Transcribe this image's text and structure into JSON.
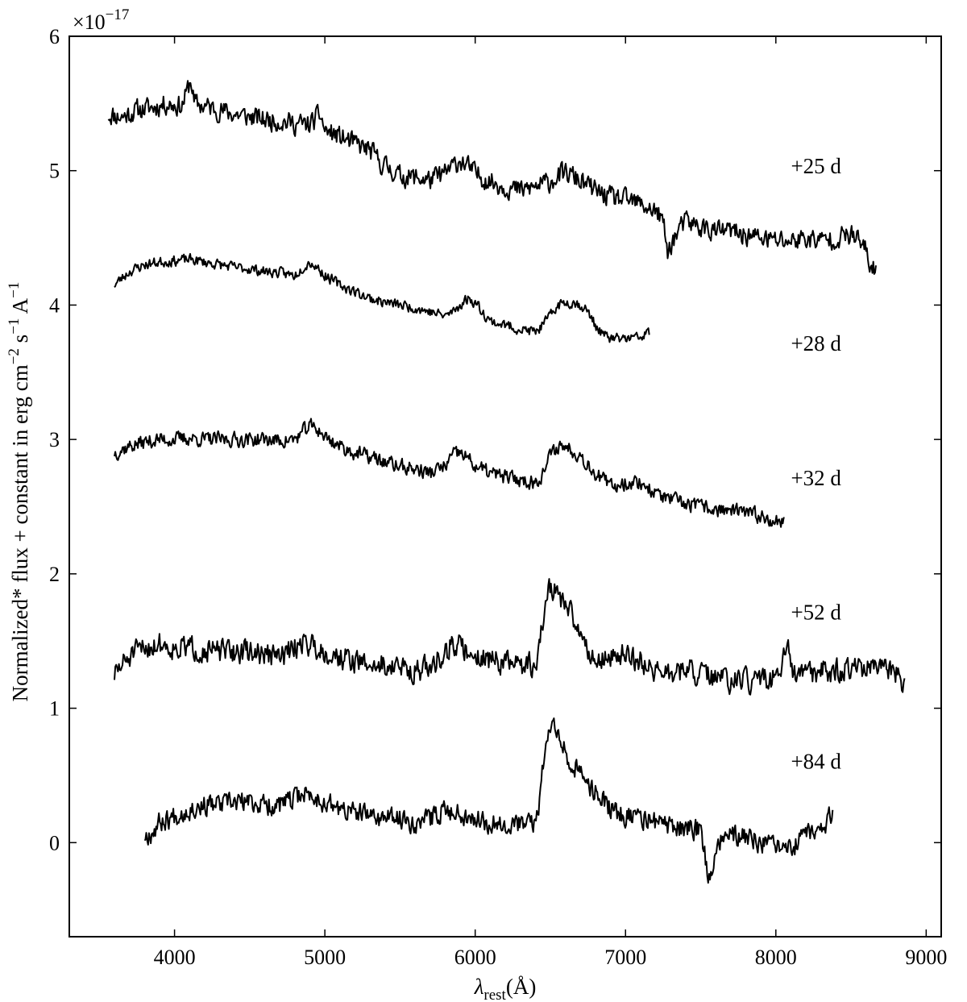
{
  "chart_data": {
    "type": "line",
    "title": "",
    "xlabel": "λrest(Å)",
    "xlabel_parts": {
      "symbol": "λ",
      "subscript": "rest",
      "unit": "(Å)"
    },
    "ylabel": "Normalized* flux + constant in erg cm−2 s−1 A−1",
    "ylabel_parts": {
      "lead": "Normalized* flux + constant in erg cm",
      "exp1": "−2",
      "mid": " s",
      "exp2": "−1",
      "tail": " A",
      "exp3": "−1"
    },
    "y_multiplier": "×10−17",
    "y_multiplier_parts": {
      "base": "×10",
      "exp": "−17"
    },
    "xlim": [
      3300,
      9100
    ],
    "ylim": [
      -0.7,
      6.0
    ],
    "xticks": [
      4000,
      5000,
      6000,
      7000,
      8000,
      9000
    ],
    "yticks": [
      0,
      1,
      2,
      3,
      4,
      5,
      6
    ],
    "grid": false,
    "line_color": "#000000",
    "series": [
      {
        "name": "+25 d",
        "label_pos": [
          8100,
          4.98
        ],
        "x": [
          3560,
          3650,
          3750,
          3850,
          3950,
          4050,
          4110,
          4130,
          4200,
          4300,
          4400,
          4500,
          4600,
          4700,
          4800,
          4900,
          4970,
          5000,
          5100,
          5200,
          5300,
          5380,
          5450,
          5500,
          5600,
          5700,
          5800,
          5900,
          6000,
          6100,
          6200,
          6300,
          6400,
          6450,
          6500,
          6550,
          6600,
          6650,
          6700,
          6800,
          6900,
          7000,
          7100,
          7200,
          7250,
          7280,
          7300,
          7350,
          7400,
          7500,
          7600,
          7700,
          7800,
          7900,
          8000,
          8100,
          8200,
          8300,
          8400,
          8500,
          8550,
          8600,
          8640,
          8670
        ],
        "y": [
          5.42,
          5.4,
          5.45,
          5.47,
          5.5,
          5.48,
          5.68,
          5.5,
          5.48,
          5.45,
          5.42,
          5.4,
          5.38,
          5.37,
          5.35,
          5.34,
          5.42,
          5.3,
          5.25,
          5.2,
          5.15,
          5.05,
          5.0,
          4.96,
          4.95,
          4.93,
          4.98,
          5.08,
          4.98,
          4.92,
          4.88,
          4.85,
          4.88,
          4.9,
          4.92,
          4.96,
          4.98,
          4.96,
          4.92,
          4.85,
          4.8,
          4.78,
          4.75,
          4.7,
          4.62,
          4.38,
          4.45,
          4.55,
          4.62,
          4.58,
          4.55,
          4.55,
          4.52,
          4.5,
          4.48,
          4.48,
          4.5,
          4.48,
          4.5,
          4.52,
          4.48,
          4.4,
          4.25,
          4.3
        ],
        "noise": 0.07,
        "seed": 11
      },
      {
        "name": "+28 d",
        "label_pos": [
          8100,
          3.66
        ],
        "x": [
          3600,
          3700,
          3800,
          3900,
          4000,
          4100,
          4200,
          4300,
          4400,
          4500,
          4600,
          4700,
          4800,
          4850,
          4900,
          4950,
          5000,
          5100,
          5200,
          5300,
          5400,
          5500,
          5600,
          5700,
          5800,
          5850,
          5900,
          5950,
          6000,
          6050,
          6100,
          6200,
          6300,
          6400,
          6450,
          6500,
          6550,
          6600,
          6650,
          6700,
          6750,
          6800,
          6850,
          6900,
          7000,
          7100,
          7160
        ],
        "y": [
          4.15,
          4.25,
          4.3,
          4.32,
          4.33,
          4.34,
          4.32,
          4.3,
          4.28,
          4.27,
          4.25,
          4.24,
          4.22,
          4.28,
          4.32,
          4.28,
          4.22,
          4.15,
          4.1,
          4.05,
          4.02,
          4.0,
          3.98,
          3.95,
          3.92,
          3.95,
          4.0,
          4.05,
          4.02,
          3.95,
          3.88,
          3.85,
          3.82,
          3.8,
          3.85,
          3.92,
          4.0,
          4.02,
          4.02,
          4.0,
          3.95,
          3.85,
          3.78,
          3.75,
          3.75,
          3.76,
          3.8
        ],
        "noise": 0.035,
        "seed": 23
      },
      {
        "name": "+32 d",
        "label_pos": [
          8100,
          2.66
        ],
        "x": [
          3600,
          3700,
          3800,
          3900,
          4000,
          4100,
          4200,
          4300,
          4400,
          4500,
          4600,
          4700,
          4800,
          4850,
          4900,
          4950,
          5000,
          5100,
          5200,
          5300,
          5400,
          5500,
          5600,
          5700,
          5800,
          5850,
          5900,
          5950,
          6000,
          6100,
          6200,
          6300,
          6400,
          6450,
          6500,
          6550,
          6600,
          6650,
          6700,
          6800,
          6900,
          7000,
          7100,
          7200,
          7300,
          7400,
          7500,
          7600,
          7700,
          7800,
          7900,
          8000,
          8060
        ],
        "y": [
          2.9,
          2.95,
          2.98,
          3.0,
          3.0,
          3.01,
          3.0,
          3.0,
          3.0,
          3.0,
          3.0,
          2.99,
          3.0,
          3.05,
          3.1,
          3.08,
          3.02,
          2.95,
          2.9,
          2.87,
          2.83,
          2.8,
          2.78,
          2.75,
          2.8,
          2.88,
          2.9,
          2.86,
          2.8,
          2.75,
          2.72,
          2.7,
          2.68,
          2.75,
          2.88,
          2.95,
          2.95,
          2.92,
          2.88,
          2.75,
          2.65,
          2.68,
          2.68,
          2.6,
          2.55,
          2.52,
          2.5,
          2.48,
          2.47,
          2.45,
          2.43,
          2.4,
          2.38
        ],
        "noise": 0.05,
        "seed": 37
      },
      {
        "name": "+52 d",
        "label_pos": [
          8100,
          1.66
        ],
        "x": [
          3600,
          3650,
          3700,
          3800,
          3900,
          4000,
          4100,
          4200,
          4300,
          4400,
          4500,
          4600,
          4700,
          4800,
          4850,
          4900,
          4950,
          5000,
          5100,
          5200,
          5300,
          5400,
          5500,
          5600,
          5700,
          5800,
          5850,
          5900,
          5950,
          6000,
          6100,
          6200,
          6300,
          6400,
          6420,
          6450,
          6500,
          6550,
          6600,
          6650,
          6700,
          6800,
          6900,
          7000,
          7100,
          7200,
          7300,
          7400,
          7500,
          7600,
          7700,
          7800,
          7900,
          8000,
          8080,
          8100,
          8200,
          8300,
          8400,
          8500,
          8600,
          8700,
          8800,
          8860
        ],
        "y": [
          1.25,
          1.32,
          1.38,
          1.45,
          1.48,
          1.45,
          1.45,
          1.43,
          1.42,
          1.42,
          1.42,
          1.4,
          1.38,
          1.45,
          1.5,
          1.48,
          1.45,
          1.42,
          1.38,
          1.35,
          1.32,
          1.32,
          1.3,
          1.28,
          1.3,
          1.42,
          1.48,
          1.45,
          1.42,
          1.4,
          1.36,
          1.34,
          1.32,
          1.32,
          1.4,
          1.65,
          1.92,
          1.85,
          1.75,
          1.68,
          1.55,
          1.35,
          1.38,
          1.4,
          1.35,
          1.28,
          1.25,
          1.28,
          1.25,
          1.22,
          1.2,
          1.2,
          1.2,
          1.22,
          1.45,
          1.25,
          1.25,
          1.28,
          1.28,
          1.3,
          1.3,
          1.28,
          1.25,
          1.18
        ],
        "noise": 0.08,
        "seed": 51
      },
      {
        "name": "+84 d",
        "label_pos": [
          8100,
          0.55
        ],
        "x": [
          3800,
          3850,
          3900,
          4000,
          4100,
          4200,
          4300,
          4400,
          4500,
          4600,
          4700,
          4800,
          4850,
          4900,
          5000,
          5100,
          5200,
          5300,
          5400,
          5500,
          5600,
          5700,
          5800,
          5900,
          6000,
          6100,
          6200,
          6300,
          6400,
          6420,
          6450,
          6500,
          6520,
          6550,
          6600,
          6650,
          6700,
          6800,
          6900,
          7000,
          7100,
          7200,
          7300,
          7400,
          7500,
          7560,
          7600,
          7700,
          7800,
          7900,
          8000,
          8100,
          8200,
          8300,
          8380
        ],
        "y": [
          0.05,
          0.08,
          0.15,
          0.2,
          0.25,
          0.28,
          0.28,
          0.3,
          0.3,
          0.28,
          0.28,
          0.32,
          0.38,
          0.35,
          0.3,
          0.25,
          0.22,
          0.2,
          0.18,
          0.18,
          0.15,
          0.18,
          0.25,
          0.22,
          0.18,
          0.15,
          0.15,
          0.14,
          0.14,
          0.25,
          0.55,
          0.88,
          0.95,
          0.85,
          0.68,
          0.58,
          0.5,
          0.38,
          0.25,
          0.2,
          0.18,
          0.15,
          0.12,
          0.1,
          0.1,
          -0.3,
          0.0,
          0.05,
          0.05,
          0.0,
          -0.05,
          -0.05,
          0.05,
          0.1,
          0.22
        ],
        "noise": 0.07,
        "seed": 67
      }
    ]
  }
}
